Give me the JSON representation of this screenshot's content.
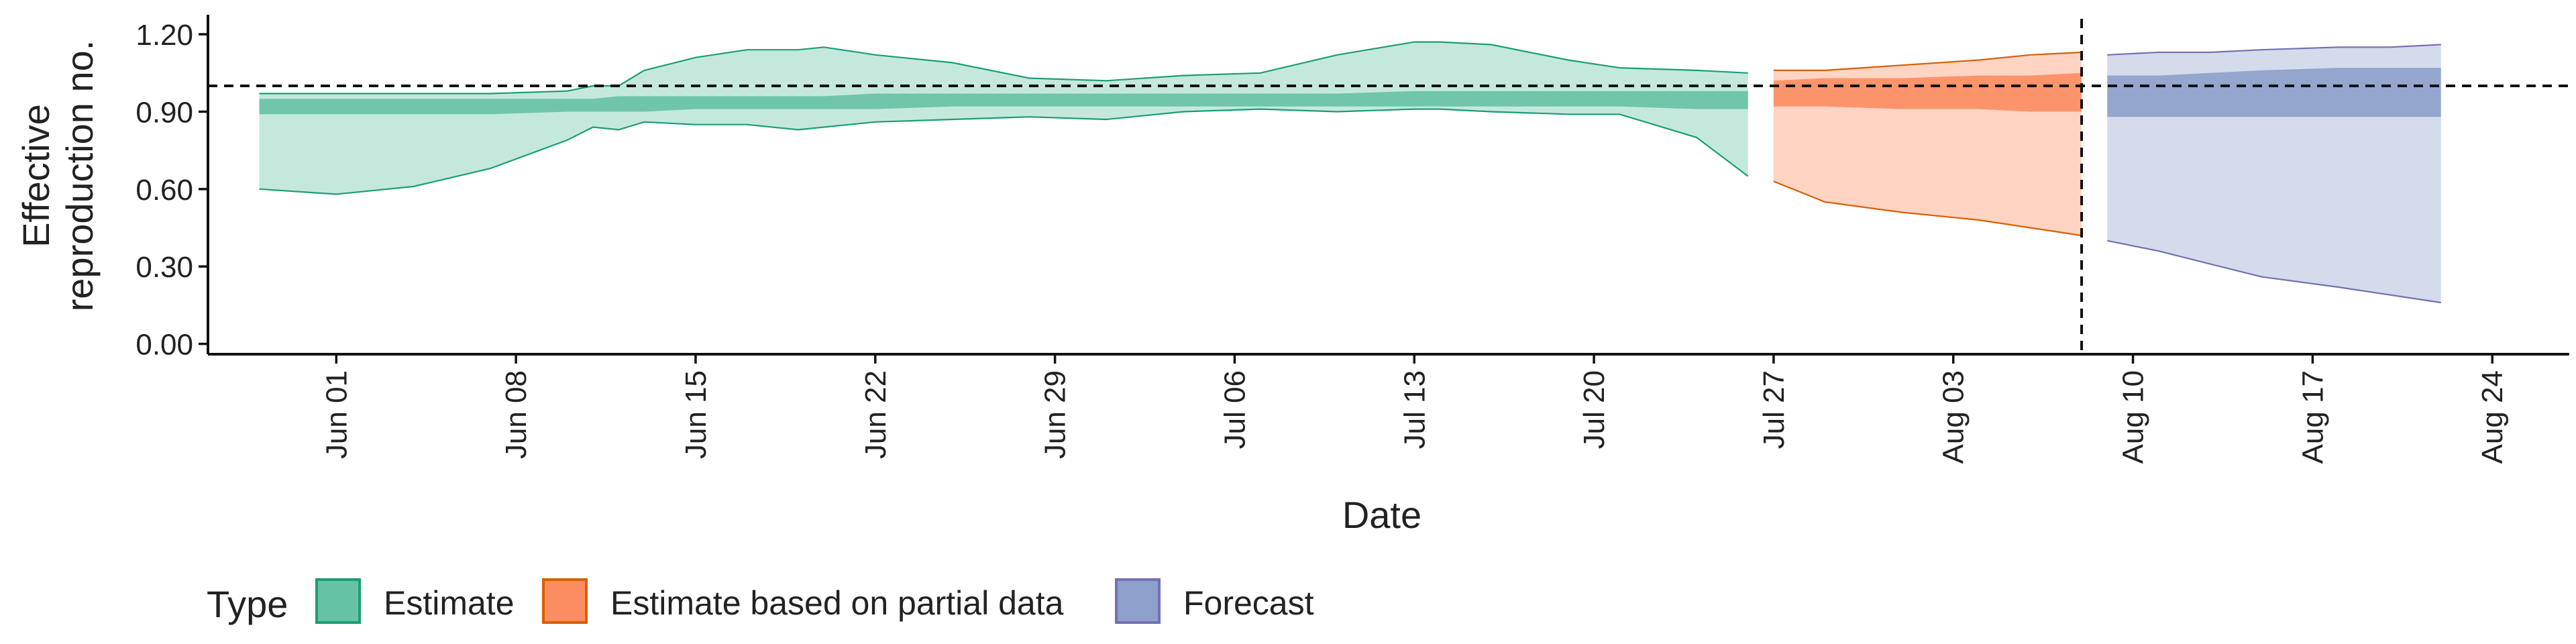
{
  "chart_data": {
    "type": "area",
    "title": "",
    "xlabel": "Date",
    "ylabel": [
      "Effective",
      "reproduction no."
    ],
    "x_range": [
      "2020-05-27",
      "2020-08-27"
    ],
    "ylim": [
      -0.04,
      1.26
    ],
    "y_ticks": [
      0.0,
      0.3,
      0.6,
      0.9,
      1.2
    ],
    "y_tick_labels": [
      "0.00",
      "0.30",
      "0.60",
      "0.90",
      "1.20"
    ],
    "x_ticks": [
      "2020-06-01",
      "2020-06-08",
      "2020-06-15",
      "2020-06-22",
      "2020-06-29",
      "2020-07-06",
      "2020-07-13",
      "2020-07-20",
      "2020-07-27",
      "2020-08-03",
      "2020-08-10",
      "2020-08-17",
      "2020-08-24"
    ],
    "x_tick_labels": [
      "Jun 01",
      "Jun 08",
      "Jun 15",
      "Jun 22",
      "Jun 29",
      "Jul 06",
      "Jul 13",
      "Jul 20",
      "Jul 27",
      "Aug 03",
      "Aug 10",
      "Aug 17",
      "Aug 24"
    ],
    "reference_hline": 1.0,
    "reference_vline": "2020-08-08",
    "grid": false,
    "legend": {
      "title": "Type",
      "position": "bottom-left",
      "entries": [
        "Estimate",
        "Estimate based on partial data",
        "Forecast"
      ]
    },
    "colors": {
      "Estimate": {
        "fill": "#66c2a5",
        "line": "#1b9e77"
      },
      "Estimate based on partial data": {
        "fill": "#fc8d62",
        "line": "#d95f02"
      },
      "Forecast": {
        "fill": "#8da0cb",
        "line": "#7570b3"
      }
    },
    "series": [
      {
        "name": "Estimate",
        "x": [
          "2020-05-29",
          "2020-06-01",
          "2020-06-04",
          "2020-06-07",
          "2020-06-10",
          "2020-06-11",
          "2020-06-12",
          "2020-06-13",
          "2020-06-15",
          "2020-06-17",
          "2020-06-19",
          "2020-06-20",
          "2020-06-22",
          "2020-06-25",
          "2020-06-28",
          "2020-07-01",
          "2020-07-04",
          "2020-07-07",
          "2020-07-10",
          "2020-07-13",
          "2020-07-14",
          "2020-07-16",
          "2020-07-19",
          "2020-07-21",
          "2020-07-24",
          "2020-07-26"
        ],
        "lower_90": [
          0.6,
          0.58,
          0.61,
          0.68,
          0.79,
          0.84,
          0.83,
          0.86,
          0.85,
          0.85,
          0.83,
          0.84,
          0.86,
          0.87,
          0.88,
          0.87,
          0.9,
          0.91,
          0.9,
          0.91,
          0.91,
          0.9,
          0.89,
          0.89,
          0.8,
          0.65
        ],
        "upper_90": [
          0.97,
          0.97,
          0.97,
          0.97,
          0.98,
          1.0,
          1.0,
          1.06,
          1.11,
          1.14,
          1.14,
          1.15,
          1.12,
          1.09,
          1.03,
          1.02,
          1.04,
          1.05,
          1.12,
          1.17,
          1.17,
          1.16,
          1.1,
          1.07,
          1.06,
          1.05
        ],
        "lower_50": [
          0.89,
          0.89,
          0.89,
          0.89,
          0.9,
          0.9,
          0.9,
          0.9,
          0.91,
          0.91,
          0.91,
          0.91,
          0.91,
          0.92,
          0.92,
          0.92,
          0.92,
          0.92,
          0.92,
          0.92,
          0.92,
          0.92,
          0.92,
          0.92,
          0.91,
          0.91
        ],
        "upper_50": [
          0.95,
          0.95,
          0.95,
          0.95,
          0.95,
          0.95,
          0.96,
          0.96,
          0.96,
          0.96,
          0.96,
          0.96,
          0.97,
          0.97,
          0.97,
          0.97,
          0.97,
          0.97,
          0.97,
          0.98,
          0.98,
          0.98,
          0.98,
          0.98,
          0.98,
          0.98
        ]
      },
      {
        "name": "Estimate based on partial data",
        "x": [
          "2020-07-27",
          "2020-07-29",
          "2020-08-01",
          "2020-08-04",
          "2020-08-06",
          "2020-08-08"
        ],
        "lower_90": [
          0.63,
          0.55,
          0.51,
          0.48,
          0.45,
          0.42
        ],
        "upper_90": [
          1.06,
          1.06,
          1.08,
          1.1,
          1.12,
          1.13
        ],
        "lower_50": [
          0.92,
          0.92,
          0.91,
          0.91,
          0.9,
          0.9
        ],
        "upper_50": [
          1.02,
          1.03,
          1.03,
          1.04,
          1.04,
          1.05
        ]
      },
      {
        "name": "Forecast",
        "x": [
          "2020-08-09",
          "2020-08-11",
          "2020-08-13",
          "2020-08-15",
          "2020-08-18",
          "2020-08-20",
          "2020-08-22"
        ],
        "lower_90": [
          0.4,
          0.36,
          0.31,
          0.26,
          0.22,
          0.19,
          0.16
        ],
        "upper_90": [
          1.12,
          1.13,
          1.13,
          1.14,
          1.15,
          1.15,
          1.16
        ],
        "lower_50": [
          0.88,
          0.88,
          0.88,
          0.88,
          0.88,
          0.88,
          0.88
        ],
        "upper_50": [
          1.04,
          1.04,
          1.05,
          1.06,
          1.07,
          1.07,
          1.07
        ]
      }
    ]
  }
}
